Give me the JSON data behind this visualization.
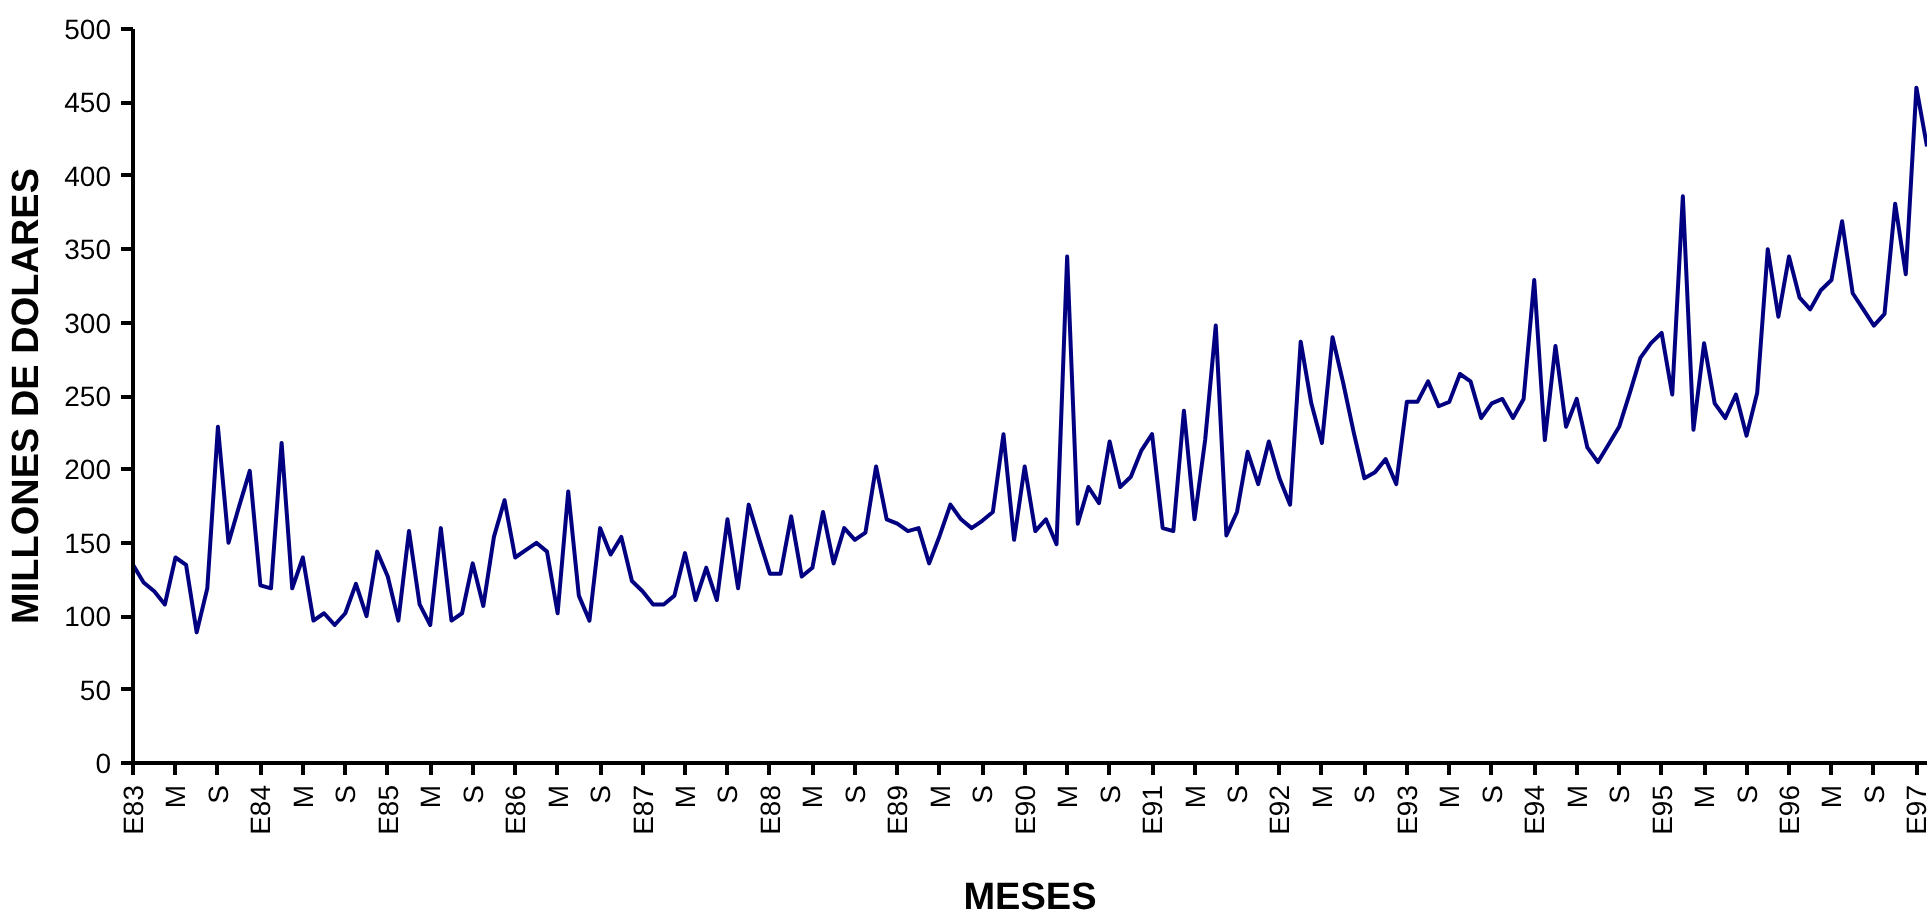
{
  "chart_data": {
    "type": "line",
    "xlabel": "MESES",
    "ylabel": "MILLONES DE DOLARES",
    "categories": [
      "E83",
      null,
      null,
      null,
      "M",
      null,
      null,
      null,
      "S",
      null,
      null,
      null,
      "E84",
      null,
      null,
      null,
      "M",
      null,
      null,
      null,
      "S",
      null,
      null,
      null,
      "E85",
      null,
      null,
      null,
      "M",
      null,
      null,
      null,
      "S",
      null,
      null,
      null,
      "E86",
      null,
      null,
      null,
      "M",
      null,
      null,
      null,
      "S",
      null,
      null,
      null,
      "E87",
      null,
      null,
      null,
      "M",
      null,
      null,
      null,
      "S",
      null,
      null,
      null,
      "E88",
      null,
      null,
      null,
      "M",
      null,
      null,
      null,
      "S",
      null,
      null,
      null,
      "E89",
      null,
      null,
      null,
      "M",
      null,
      null,
      null,
      "S",
      null,
      null,
      null,
      "E90",
      null,
      null,
      null,
      "M",
      null,
      null,
      null,
      "S",
      null,
      null,
      null,
      "E91",
      null,
      null,
      null,
      "M",
      null,
      null,
      null,
      "S",
      null,
      null,
      null,
      "E92",
      null,
      null,
      null,
      "M",
      null,
      null,
      null,
      "S",
      null,
      null,
      null,
      "E93",
      null,
      null,
      null,
      "M",
      null,
      null,
      null,
      "S",
      null,
      null,
      null,
      "E94",
      null,
      null,
      null,
      "M",
      null,
      null,
      null,
      "S",
      null,
      null,
      null,
      "E95",
      null,
      null,
      null,
      "M",
      null,
      null,
      null,
      "S",
      null,
      null,
      null,
      "E96",
      null,
      null,
      null,
      "M",
      null,
      null,
      null,
      "S",
      null,
      null,
      null,
      "E97",
      null
    ],
    "series": [
      {
        "color": "#000080",
        "values": [
          135,
          123,
          117,
          108,
          140,
          135,
          89,
          119,
          229,
          150,
          175,
          199,
          121,
          119,
          218,
          119,
          140,
          97,
          102,
          94,
          102,
          122,
          100,
          144,
          127,
          97,
          158,
          108,
          94,
          160,
          97,
          102,
          136,
          107,
          154,
          179,
          140,
          145,
          150,
          144,
          102,
          185,
          114,
          97,
          160,
          142,
          154,
          124,
          117,
          108,
          108,
          114,
          143,
          111,
          133,
          111,
          166,
          119,
          176,
          152,
          129,
          129,
          168,
          127,
          133,
          171,
          136,
          160,
          152,
          157,
          202,
          166,
          163,
          158,
          160,
          136,
          155,
          176,
          166,
          160,
          165,
          171,
          224,
          152,
          202,
          158,
          166,
          149,
          345,
          163,
          188,
          177,
          219,
          188,
          195,
          213,
          224,
          160,
          158,
          240,
          166,
          220,
          298,
          155,
          171,
          212,
          190,
          219,
          194,
          176,
          287,
          245,
          218,
          290,
          259,
          225,
          194,
          198,
          207,
          190,
          246,
          246,
          260,
          243,
          246,
          265,
          260,
          235,
          245,
          248,
          235,
          248,
          329,
          220,
          284,
          229,
          248,
          215,
          205,
          217,
          229,
          252,
          276,
          286,
          293,
          251,
          386,
          227,
          286,
          245,
          235,
          251,
          223,
          252,
          350,
          304,
          345,
          317,
          309,
          322,
          329,
          369,
          320,
          309,
          298,
          306,
          381,
          333,
          460,
          420
        ]
      }
    ],
    "ylim": [
      0,
      500
    ],
    "yticks": [
      0,
      50,
      100,
      150,
      200,
      250,
      300,
      350,
      400,
      450,
      500
    ],
    "grid": false,
    "marker": "none",
    "line_style": "solid"
  }
}
